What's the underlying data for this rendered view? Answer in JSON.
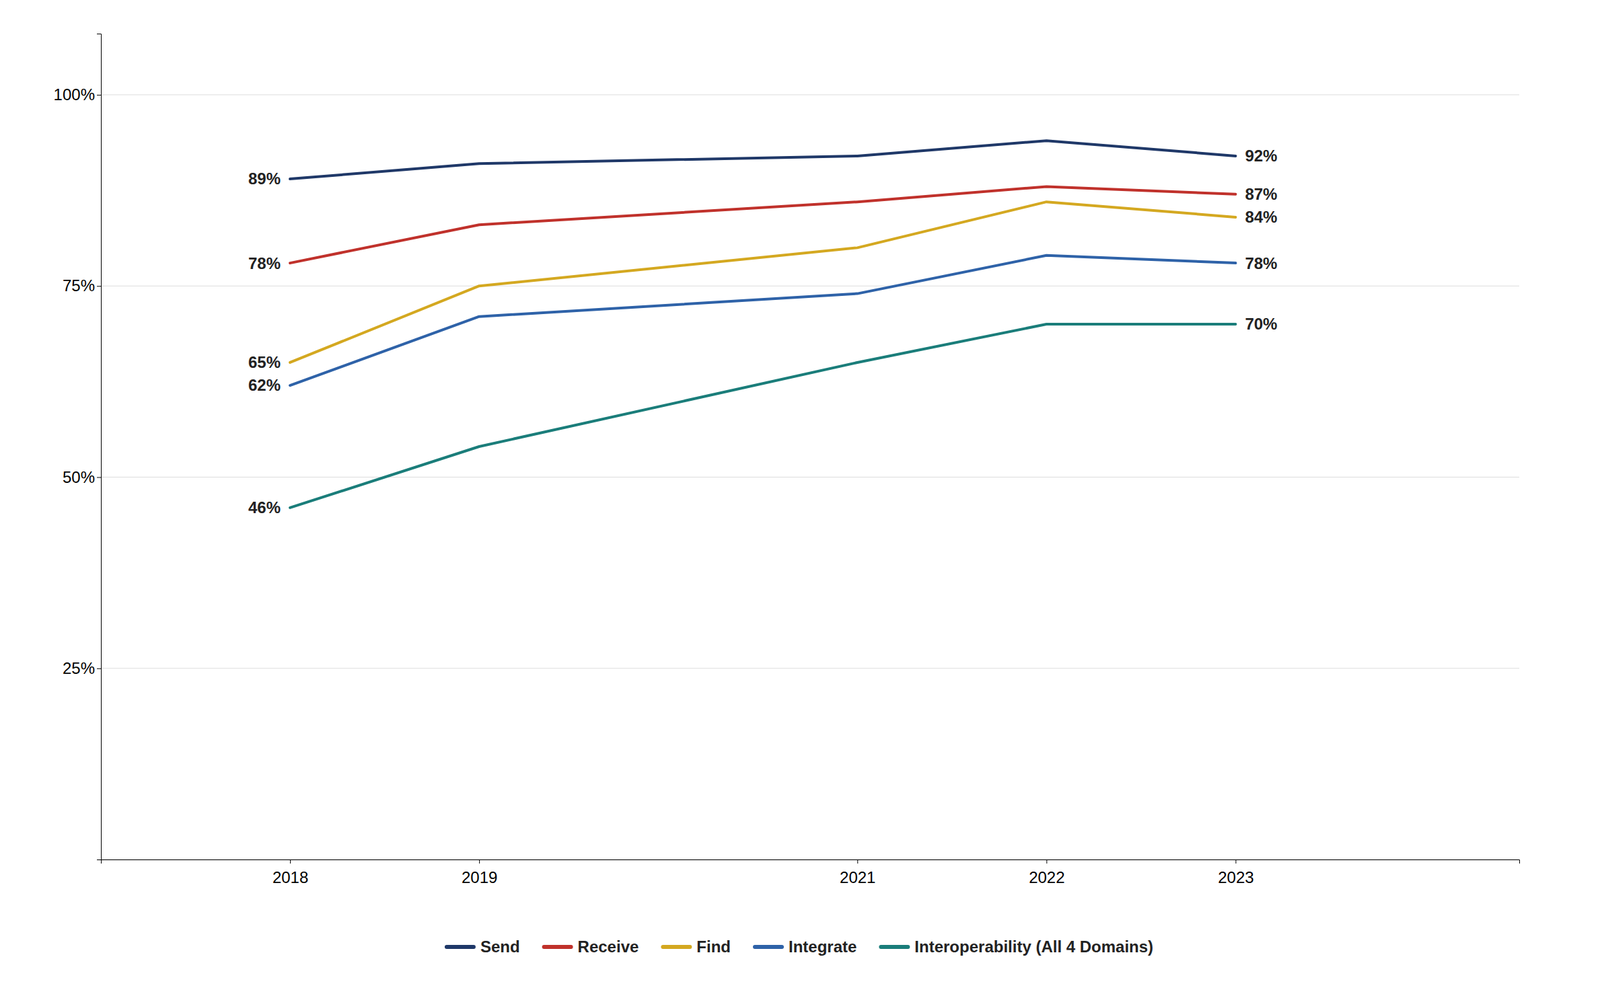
{
  "chart_data": {
    "type": "line",
    "x": [
      2018,
      2019,
      2021,
      2022,
      2023
    ],
    "xlim": [
      2017.0,
      2024.5
    ],
    "xticks": [
      2018,
      2019,
      2021,
      2022,
      2023
    ],
    "ylim": [
      0,
      108
    ],
    "yticks": [
      {
        "value": 0,
        "label": null
      },
      {
        "value": 25,
        "label": "25%"
      },
      {
        "value": 50,
        "label": "50%"
      },
      {
        "value": 75,
        "label": "75%"
      },
      {
        "value": 100,
        "label": "100%"
      }
    ],
    "grid": true,
    "legend": "bottom",
    "data_labels": true,
    "series": [
      {
        "name": "Send",
        "color": "#1F3868",
        "values": [
          89,
          91,
          92,
          94,
          92
        ],
        "value_labels": [
          "89%",
          null,
          null,
          null,
          "92%"
        ]
      },
      {
        "name": "Receive",
        "color": "#C0312B",
        "values": [
          78,
          83,
          86,
          88,
          87
        ],
        "value_labels": [
          "78%",
          null,
          null,
          null,
          "87%"
        ]
      },
      {
        "name": "Find",
        "color": "#D4A820",
        "values": [
          65,
          75,
          80,
          86,
          84
        ],
        "value_labels": [
          "65%",
          null,
          null,
          null,
          "84%"
        ]
      },
      {
        "name": "Integrate",
        "color": "#2E62A8",
        "values": [
          62,
          71,
          74,
          79,
          78
        ],
        "value_labels": [
          "62%",
          null,
          null,
          null,
          "78%"
        ]
      },
      {
        "name": "Interoperability (All 4 Domains)",
        "color": "#1A7D7A",
        "values": [
          46,
          54,
          65,
          70,
          70
        ],
        "value_labels": [
          "46%",
          null,
          null,
          null,
          "70%"
        ]
      }
    ]
  }
}
